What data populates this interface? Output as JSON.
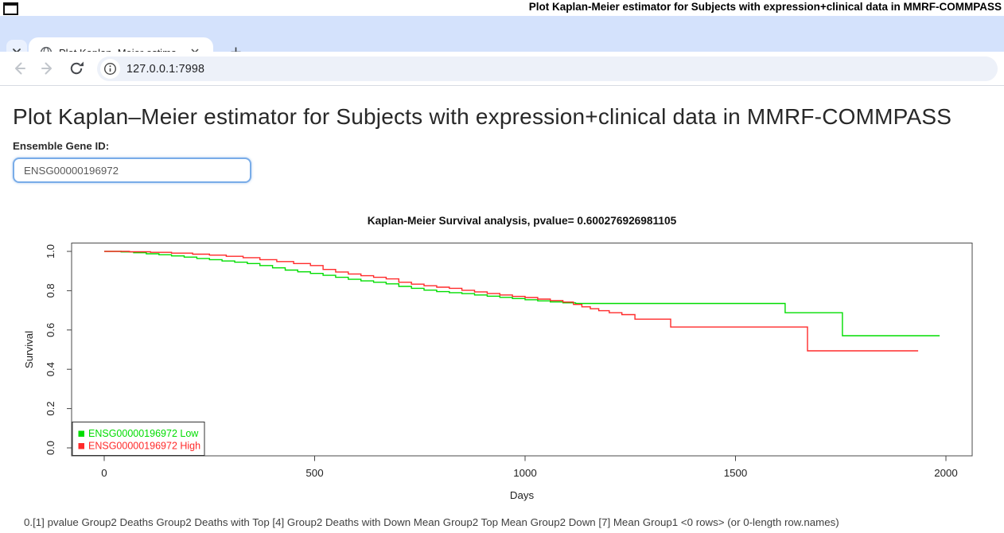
{
  "window": {
    "title": "Plot Kaplan-Meier estimator for Subjects with expression+clinical data in MMRF-COMMPASS"
  },
  "browser": {
    "tab": {
      "title": "Plot Kaplan–Meier estima"
    },
    "url": "127.0.0.1:7998",
    "icons": [
      "tab-search-chevron",
      "globe-favicon",
      "close-icon",
      "plus-icon",
      "back-arrow",
      "forward-arrow",
      "reload-icon",
      "info-icon"
    ]
  },
  "page": {
    "heading": "Plot Kaplan–Meier estimator for Subjects with expression+clinical data in MMRF-COMMPASS",
    "gene_label": "Ensemble Gene ID:",
    "gene_value": "ENSG00000196972",
    "status_line": "0.[1] pvalue Group2 Deaths Group2 Deaths with Top [4] Group2 Deaths with Down Mean Group2 Top Mean Group2 Down [7] Mean Group1 <0 rows> (or 0-length row.names)"
  },
  "chart_data": {
    "type": "line",
    "subtype": "kaplan-meier-step",
    "title": "Kaplan-Meier Survival analysis, pvalue= 0.600276926981105",
    "pvalue": 0.600276926981105,
    "xlabel": "Days",
    "ylabel": "Survival",
    "xticks": [
      0,
      500,
      1000,
      1500,
      2000
    ],
    "yticks": [
      0.0,
      0.2,
      0.4,
      0.6,
      0.8,
      1.0
    ],
    "xlim": [
      0,
      2000
    ],
    "ylim": [
      0.0,
      1.0
    ],
    "grid": false,
    "legend_position": "bottom-left",
    "series": [
      {
        "name": "ENSG00000196972 Low",
        "color": "#00DD00",
        "end": 1985,
        "points": [
          [
            0,
            1.0
          ],
          [
            40,
            0.997
          ],
          [
            70,
            0.993
          ],
          [
            100,
            0.988
          ],
          [
            130,
            0.983
          ],
          [
            160,
            0.977
          ],
          [
            190,
            0.971
          ],
          [
            220,
            0.964
          ],
          [
            250,
            0.958
          ],
          [
            280,
            0.951
          ],
          [
            310,
            0.945
          ],
          [
            340,
            0.938
          ],
          [
            370,
            0.928
          ],
          [
            400,
            0.916
          ],
          [
            430,
            0.905
          ],
          [
            460,
            0.896
          ],
          [
            490,
            0.888
          ],
          [
            520,
            0.878
          ],
          [
            550,
            0.868
          ],
          [
            580,
            0.858
          ],
          [
            610,
            0.85
          ],
          [
            640,
            0.843
          ],
          [
            670,
            0.835
          ],
          [
            700,
            0.822
          ],
          [
            730,
            0.812
          ],
          [
            760,
            0.803
          ],
          [
            790,
            0.795
          ],
          [
            820,
            0.79
          ],
          [
            850,
            0.785
          ],
          [
            880,
            0.778
          ],
          [
            910,
            0.772
          ],
          [
            940,
            0.766
          ],
          [
            970,
            0.76
          ],
          [
            1000,
            0.754
          ],
          [
            1030,
            0.748
          ],
          [
            1060,
            0.743
          ],
          [
            1090,
            0.738
          ],
          [
            1120,
            0.735
          ],
          [
            1618,
            0.688
          ],
          [
            1754,
            0.571
          ]
        ]
      },
      {
        "name": "ENSG00000196972 High",
        "color": "#FF2A2A",
        "end": 1934,
        "points": [
          [
            0,
            1.0
          ],
          [
            60,
            0.998
          ],
          [
            110,
            0.995
          ],
          [
            160,
            0.991
          ],
          [
            210,
            0.986
          ],
          [
            250,
            0.981
          ],
          [
            290,
            0.975
          ],
          [
            330,
            0.968
          ],
          [
            370,
            0.958
          ],
          [
            410,
            0.948
          ],
          [
            450,
            0.938
          ],
          [
            490,
            0.928
          ],
          [
            520,
            0.908
          ],
          [
            550,
            0.895
          ],
          [
            580,
            0.885
          ],
          [
            610,
            0.876
          ],
          [
            640,
            0.868
          ],
          [
            670,
            0.86
          ],
          [
            700,
            0.843
          ],
          [
            730,
            0.833
          ],
          [
            760,
            0.825
          ],
          [
            790,
            0.818
          ],
          [
            820,
            0.812
          ],
          [
            850,
            0.802
          ],
          [
            880,
            0.794
          ],
          [
            910,
            0.786
          ],
          [
            940,
            0.778
          ],
          [
            970,
            0.771
          ],
          [
            1000,
            0.765
          ],
          [
            1030,
            0.757
          ],
          [
            1060,
            0.75
          ],
          [
            1090,
            0.742
          ],
          [
            1115,
            0.73
          ],
          [
            1135,
            0.718
          ],
          [
            1155,
            0.708
          ],
          [
            1175,
            0.698
          ],
          [
            1200,
            0.688
          ],
          [
            1230,
            0.678
          ],
          [
            1261,
            0.655
          ],
          [
            1346,
            0.615
          ],
          [
            1671,
            0.494
          ]
        ]
      }
    ]
  }
}
